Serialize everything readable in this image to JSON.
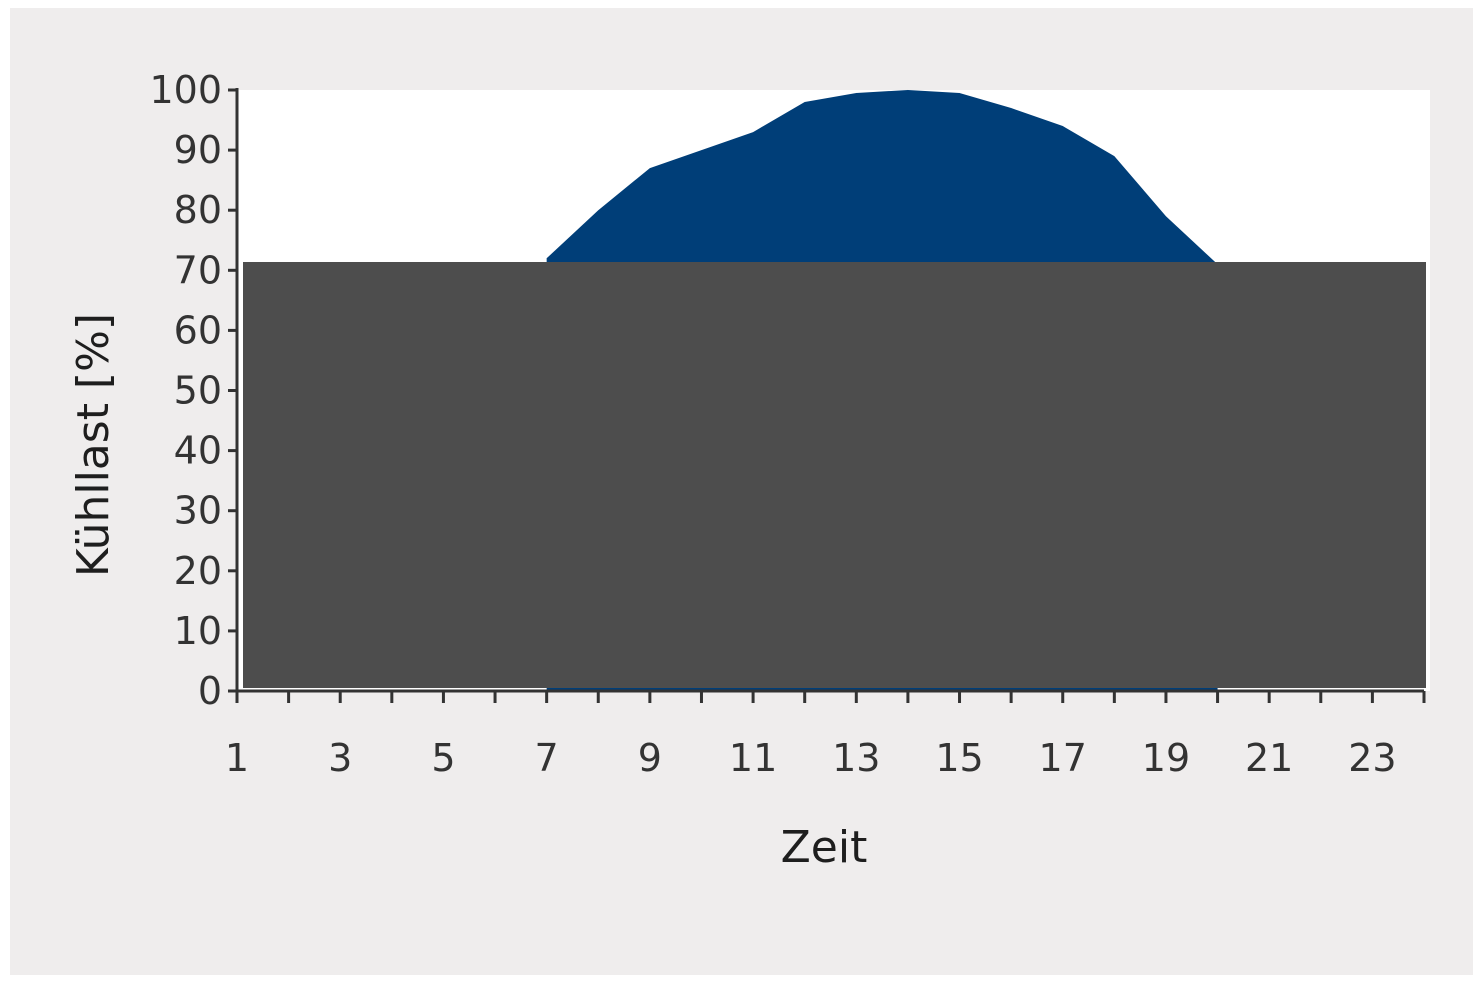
{
  "chart_data": {
    "type": "area",
    "xlabel": "Zeit",
    "ylabel": "Kühllast [%]",
    "xlim": [
      1,
      24
    ],
    "ylim": [
      0,
      100
    ],
    "yticks": [
      0,
      10,
      20,
      30,
      40,
      50,
      60,
      70,
      80,
      90,
      100
    ],
    "xtick_labels": [
      1,
      3,
      5,
      7,
      9,
      11,
      13,
      15,
      17,
      19,
      21,
      23
    ],
    "x": [
      7,
      8,
      9,
      10,
      11,
      12,
      13,
      14,
      15,
      16,
      17,
      18,
      19,
      20
    ],
    "values": [
      72,
      80,
      87,
      90,
      93,
      98,
      99.5,
      100,
      99.5,
      97,
      94,
      89,
      79,
      71
    ],
    "series_color": "#003e78",
    "plot_background": "#ffffff",
    "grid": false,
    "legend": "none"
  },
  "redaction": {
    "color": "#4d4d4d",
    "covers": "lower portion of plot"
  }
}
